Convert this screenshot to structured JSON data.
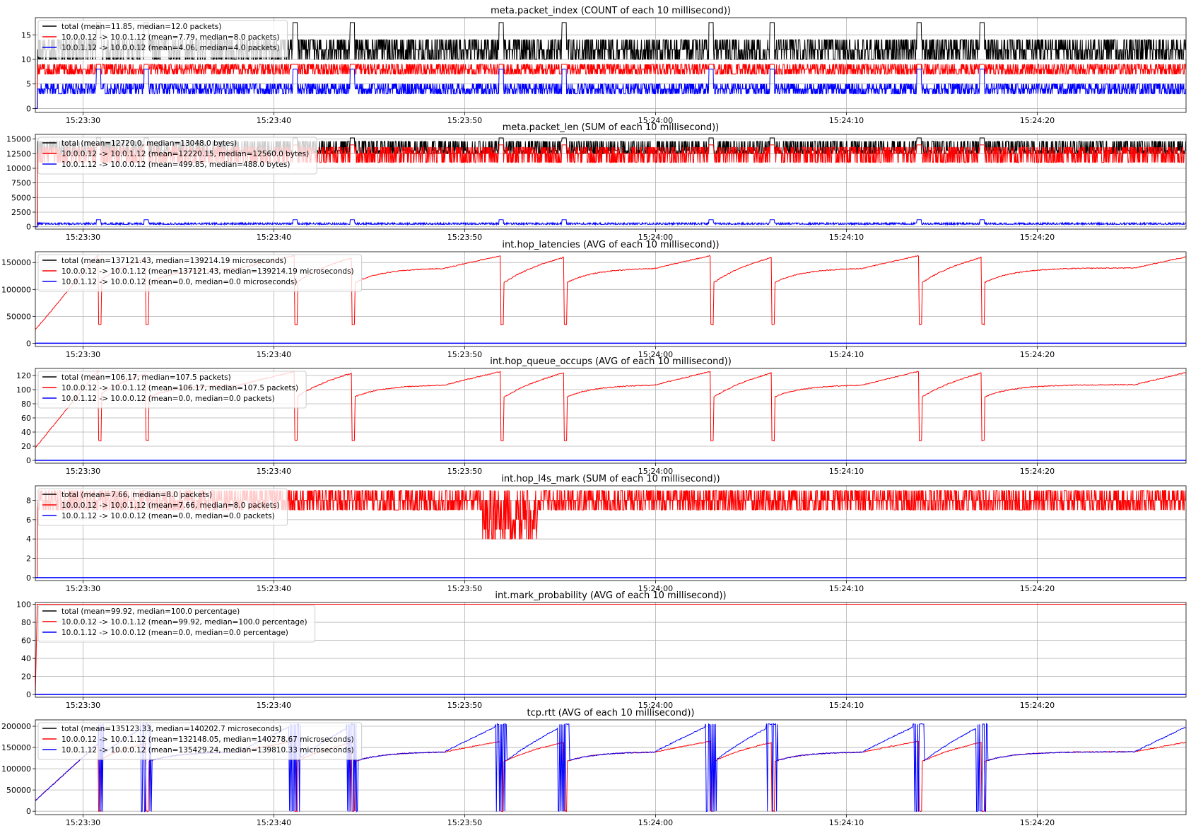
{
  "figure": {
    "xtick_labels": [
      "15:23:30",
      "15:23:40",
      "15:23:50",
      "15:24:00",
      "15:24:10",
      "15:24:20"
    ],
    "xlim_seconds": [
      87.5,
      147.8
    ],
    "xtick_seconds": [
      90,
      100,
      110,
      120,
      130,
      140
    ],
    "spike_seconds": [
      90.8,
      93.3,
      101.1,
      104.1,
      111.9,
      115.2,
      122.9,
      126.1,
      133.8,
      137.1
    ],
    "colors": {
      "total": "#000000",
      "forward": "#ff0000",
      "reverse": "#0000ff",
      "grid": "#b0b0b0"
    }
  },
  "chart_data": [
    {
      "type": "line",
      "title": "meta.packet_index (COUNT of each 10 millisecond))",
      "x_axis": "time 15:23:27.5 – 15:24:27.8 (10 ms buckets)",
      "ylim": [
        -0.8,
        18.5
      ],
      "yticks": [
        0,
        5,
        10,
        15
      ],
      "ytick_labels": [
        "0",
        "5",
        "10",
        "15"
      ],
      "grid": true,
      "legend_position": "upper-left",
      "series": [
        {
          "name": "total (mean=11.85, median=12.0 packets)",
          "baseline": 12,
          "low": 10,
          "high": 14,
          "spike": 17.5,
          "color": "#000000",
          "draw": "noise"
        },
        {
          "name": "10.0.0.12 -> 10.0.1.12 (mean=7.79, median=8.0 packets)",
          "baseline": 8,
          "low": 7,
          "high": 9,
          "spike": 9,
          "color": "#ff0000",
          "draw": "noise"
        },
        {
          "name": "10.0.1.12 -> 10.0.0.12 (mean=4.06, median=4.0 packets)",
          "baseline": 4,
          "low": 3,
          "high": 5,
          "spike": 8,
          "color": "#0000ff",
          "draw": "noise"
        }
      ]
    },
    {
      "type": "line",
      "title": "meta.packet_len (SUM of each 10 millisecond))",
      "ylim": [
        -400,
        15800
      ],
      "yticks": [
        0,
        2500,
        5000,
        7500,
        10000,
        12500,
        15000
      ],
      "ytick_labels": [
        "0",
        "2500",
        "5000",
        "7500",
        "10000",
        "12500",
        "15000"
      ],
      "grid": true,
      "legend_position": "upper-left",
      "series": [
        {
          "name": "total (mean=12720.0, median=13048.0 bytes)",
          "baseline": 13048,
          "low": 12500,
          "high": 14600,
          "spike": 15200,
          "color": "#000000",
          "draw": "noise"
        },
        {
          "name": "10.0.0.12 -> 10.0.1.12 (mean=12220.15, median=12560.0 bytes)",
          "baseline": 12560,
          "low": 11000,
          "high": 13600,
          "spike": 14000,
          "color": "#ff0000",
          "draw": "noise"
        },
        {
          "name": "10.0.1.12 -> 10.0.0.12 (mean=499.85, median=488.0 bytes)",
          "baseline": 488,
          "low": 400,
          "high": 650,
          "spike": 1200,
          "color": "#0000ff",
          "draw": "noise"
        }
      ]
    },
    {
      "type": "line",
      "title": "int.hop_latencies (AVG of each 10 millisecond))",
      "ylim": [
        -6000,
        170000
      ],
      "yticks": [
        0,
        50000,
        100000,
        150000
      ],
      "ytick_labels": [
        "0",
        "50000",
        "100000",
        "150000"
      ],
      "grid": true,
      "legend_position": "upper-left",
      "series": [
        {
          "name": "total (mean=137121.43, median=139214.19 microseconds)",
          "color": "#000000",
          "draw": "hidden"
        },
        {
          "name": "10.0.0.12 -> 10.0.1.12 (mean=137121.43, median=139214.19 microseconds)",
          "start": 25000,
          "first_peak": 165000,
          "dip": 35000,
          "recover": 110000,
          "plateau": 140000,
          "peak": 163000,
          "color": "#ff0000",
          "draw": "sawtooth"
        },
        {
          "name": "10.0.1.12 -> 10.0.0.12 (mean=0.0, median=0.0 microseconds)",
          "baseline": 0,
          "color": "#0000ff",
          "draw": "flat"
        }
      ]
    },
    {
      "type": "line",
      "title": "int.hop_queue_occups (AVG of each 10 millisecond))",
      "ylim": [
        -4,
        130
      ],
      "yticks": [
        0,
        20,
        40,
        60,
        80,
        100,
        120
      ],
      "ytick_labels": [
        "0",
        "20",
        "40",
        "60",
        "80",
        "100",
        "120"
      ],
      "grid": true,
      "legend_position": "upper-left",
      "series": [
        {
          "name": "total (mean=106.17, median=107.5 packets)",
          "color": "#000000",
          "draw": "hidden"
        },
        {
          "name": "10.0.0.12 -> 10.0.1.12 (mean=106.17, median=107.5 packets)",
          "start": 18,
          "first_peak": 127,
          "dip": 28,
          "recover": 88,
          "plateau": 107,
          "peak": 126,
          "color": "#ff0000",
          "draw": "sawtooth"
        },
        {
          "name": "10.0.1.12 -> 10.0.0.12 (mean=0.0, median=0.0 packets)",
          "baseline": 0,
          "color": "#0000ff",
          "draw": "flat"
        }
      ]
    },
    {
      "type": "line",
      "title": "int.hop_l4s_mark (SUM of each 10 millisecond))",
      "ylim": [
        -0.3,
        9.5
      ],
      "yticks": [
        0,
        2,
        4,
        6,
        8
      ],
      "ytick_labels": [
        "0",
        "2",
        "4",
        "6",
        "8"
      ],
      "grid": true,
      "legend_position": "upper-left",
      "series": [
        {
          "name": "total (mean=7.66, median=8.0 packets)",
          "color": "#000000",
          "draw": "hidden"
        },
        {
          "name": "10.0.0.12 -> 10.0.1.12 (mean=7.66, median=8.0 packets)",
          "baseline": 8,
          "low": 7,
          "high": 9,
          "dip_low": 4,
          "noisy_span": [
            110.9,
            113.8
          ],
          "color": "#ff0000",
          "draw": "marks"
        },
        {
          "name": "10.0.1.12 -> 10.0.0.12 (mean=0.0, median=0.0 packets)",
          "baseline": 0,
          "color": "#0000ff",
          "draw": "flat"
        }
      ]
    },
    {
      "type": "line",
      "title": "int.mark_probability (AVG of each 10 millisecond))",
      "ylim": [
        -3,
        102
      ],
      "yticks": [
        0,
        20,
        40,
        60,
        80,
        100
      ],
      "ytick_labels": [
        "0",
        "20",
        "40",
        "60",
        "80",
        "100"
      ],
      "grid": true,
      "legend_position": "upper-left",
      "series": [
        {
          "name": "total (mean=99.92, median=100.0 percentage)",
          "color": "#000000",
          "draw": "hidden"
        },
        {
          "name": "10.0.0.12 -> 10.0.1.12 (mean=99.92, median=100.0 percentage)",
          "baseline": 100,
          "color": "#ff0000",
          "draw": "step"
        },
        {
          "name": "10.0.1.12 -> 10.0.0.12 (mean=0.0, median=0.0 percentage)",
          "baseline": 0,
          "color": "#0000ff",
          "draw": "flat"
        }
      ]
    },
    {
      "type": "line",
      "title": "tcp.rtt (AVG of each 10 millisecond))",
      "ylim": [
        -8000,
        215000
      ],
      "yticks": [
        0,
        50000,
        100000,
        150000,
        200000
      ],
      "ytick_labels": [
        "0",
        "50000",
        "100000",
        "150000",
        "200000"
      ],
      "grid": true,
      "legend_position": "upper-left",
      "series": [
        {
          "name": "total (mean=135123.33, median=140202.7 microseconds)",
          "color": "#000000",
          "draw": "hidden"
        },
        {
          "name": "10.0.0.12 -> 10.0.1.12 (mean=132148.05, median=140278.67 microseconds)",
          "start": 25000,
          "first_peak": 160000,
          "dip": 0,
          "recover": 115000,
          "plateau": 140000,
          "peak": 165000,
          "color": "#ff0000",
          "draw": "sawtooth"
        },
        {
          "name": "10.0.1.12 -> 10.0.0.12 (mean=135429.24, median=139810.33 microseconds)",
          "start": 25000,
          "first_peak": 160000,
          "dip": 0,
          "recover": 115000,
          "plateau": 140000,
          "peak": 205000,
          "color": "#0000ff",
          "draw": "sawtooth_spiky"
        }
      ]
    }
  ]
}
